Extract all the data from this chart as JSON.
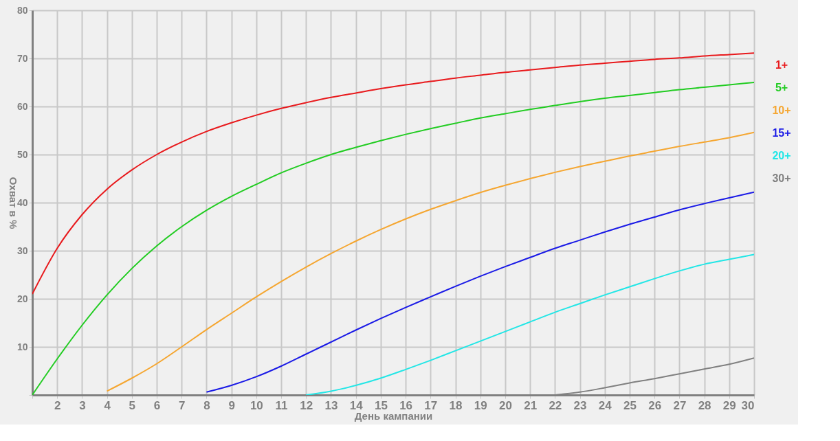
{
  "chart_data": {
    "type": "line",
    "xlabel": "День кампании",
    "ylabel": "Охват в %",
    "xlim": [
      1,
      30
    ],
    "ylim": [
      0,
      80
    ],
    "xticks": [
      {
        "value": 1,
        "label": null
      },
      2,
      3,
      4,
      5,
      6,
      7,
      8,
      9,
      10,
      11,
      12,
      13,
      14,
      15,
      16,
      17,
      18,
      19,
      20,
      21,
      22,
      23,
      24,
      25,
      26,
      27,
      28,
      29,
      30
    ],
    "yticks": [
      {
        "value": 0,
        "label": null
      },
      10,
      20,
      30,
      40,
      50,
      60,
      70,
      80
    ],
    "grid": true,
    "legend": "right",
    "marker": "none",
    "line_style": "solid",
    "series": [
      {
        "name": "1+",
        "color": "#e8191c",
        "x": [
          1,
          2,
          3,
          4,
          5,
          6,
          7,
          8,
          9,
          10,
          11,
          12,
          13,
          14,
          15,
          16,
          17,
          18,
          19,
          20,
          21,
          22,
          23,
          24,
          25,
          26,
          27,
          28,
          29,
          30
        ],
        "values": [
          21,
          30.5,
          37.5,
          42.8,
          46.8,
          50,
          52.6,
          54.8,
          56.6,
          58.2,
          59.6,
          60.8,
          61.9,
          62.8,
          63.7,
          64.5,
          65.2,
          65.9,
          66.5,
          67.1,
          67.6,
          68.1,
          68.6,
          69,
          69.4,
          69.8,
          70.1,
          70.5,
          70.8,
          71.1
        ]
      },
      {
        "name": "5+",
        "color": "#22cc22",
        "x": [
          1,
          2,
          3,
          4,
          5,
          6,
          7,
          8,
          9,
          10,
          11,
          12,
          13,
          14,
          15,
          16,
          17,
          18,
          19,
          20,
          21,
          22,
          23,
          24,
          25,
          26,
          27,
          28,
          29,
          30
        ],
        "values": [
          0,
          7.5,
          14.5,
          20.8,
          26.3,
          31,
          35,
          38.4,
          41.3,
          43.8,
          46.2,
          48.2,
          50,
          51.5,
          52.9,
          54.2,
          55.4,
          56.5,
          57.6,
          58.5,
          59.4,
          60.2,
          61,
          61.7,
          62.3,
          62.9,
          63.5,
          64,
          64.5,
          65
        ]
      },
      {
        "name": "10+",
        "color": "#f5a630",
        "x": [
          4,
          5,
          6,
          7,
          8,
          9,
          10,
          11,
          12,
          13,
          14,
          15,
          16,
          17,
          18,
          19,
          20,
          21,
          22,
          23,
          24,
          25,
          26,
          27,
          28,
          29,
          30
        ],
        "values": [
          0.8,
          3.5,
          6.5,
          10,
          13.6,
          17,
          20.4,
          23.6,
          26.6,
          29.4,
          32,
          34.4,
          36.6,
          38.6,
          40.4,
          42.1,
          43.6,
          45,
          46.3,
          47.5,
          48.6,
          49.7,
          50.7,
          51.7,
          52.6,
          53.5,
          54.6
        ]
      },
      {
        "name": "15+",
        "color": "#1a1ae6",
        "x": [
          8,
          9,
          10,
          11,
          12,
          13,
          14,
          15,
          16,
          17,
          18,
          19,
          20,
          21,
          22,
          23,
          24,
          25,
          26,
          27,
          28,
          29,
          30
        ],
        "values": [
          0.6,
          2,
          3.8,
          6,
          8.5,
          11,
          13.5,
          15.9,
          18.2,
          20.4,
          22.6,
          24.7,
          26.7,
          28.6,
          30.5,
          32.2,
          33.9,
          35.5,
          37,
          38.5,
          39.8,
          41,
          42.2
        ]
      },
      {
        "name": "20+",
        "color": "#22e6e6",
        "x": [
          12,
          13,
          14,
          15,
          16,
          17,
          18,
          19,
          20,
          21,
          22,
          23,
          24,
          25,
          26,
          27,
          28,
          29,
          30
        ],
        "values": [
          0,
          0.8,
          2,
          3.5,
          5.3,
          7.2,
          9.2,
          11.2,
          13.2,
          15.2,
          17.2,
          19,
          20.8,
          22.5,
          24.2,
          25.8,
          27.2,
          28.2,
          29.2
        ]
      },
      {
        "name": "30+",
        "color": "#808080",
        "x": [
          22,
          23,
          24,
          25,
          26,
          27,
          28,
          29,
          30
        ],
        "values": [
          0,
          0.6,
          1.5,
          2.5,
          3.4,
          4.4,
          5.4,
          6.4,
          7.7
        ]
      }
    ]
  }
}
